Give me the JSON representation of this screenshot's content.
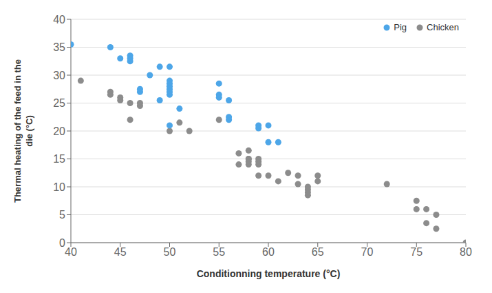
{
  "chart_data": {
    "type": "scatter",
    "xlabel": "Conditionning temperature (°C)",
    "ylabel": "Thermal heating of the feed in the\ndie (°C)",
    "xlim": [
      40,
      80
    ],
    "ylim": [
      0,
      40
    ],
    "xticks": [
      40,
      45,
      50,
      55,
      60,
      65,
      70,
      75,
      80
    ],
    "yticks": [
      0,
      5,
      10,
      15,
      20,
      25,
      30,
      35,
      40
    ],
    "grid": "y",
    "legend": "upper right",
    "series": [
      {
        "name": "Pig",
        "color": "#4da6e8",
        "x": [
          40,
          44,
          45,
          46,
          46,
          46,
          47,
          47,
          48,
          49,
          49,
          50,
          50,
          50,
          50,
          50,
          50,
          50,
          50,
          51,
          55,
          55,
          55,
          56,
          56,
          56,
          59,
          59,
          60,
          60,
          61
        ],
        "values": [
          35.5,
          35,
          33,
          32.5,
          33.5,
          33,
          27.5,
          27,
          30,
          31.5,
          25.5,
          31.5,
          29,
          28.5,
          28,
          27.5,
          27,
          26.5,
          21,
          24,
          28.5,
          26.5,
          26,
          25.5,
          22.5,
          22,
          21,
          20.5,
          21,
          18,
          18
        ]
      },
      {
        "name": "Chicken",
        "color": "#8c8c8c",
        "x": [
          41,
          44,
          44,
          45,
          45,
          46,
          46,
          47,
          47,
          50,
          51,
          52,
          55,
          57,
          57,
          58,
          58,
          58,
          58,
          58,
          59,
          59,
          59,
          59,
          60,
          61,
          62,
          63,
          63,
          64,
          64,
          64,
          64,
          65,
          65,
          72,
          75,
          75,
          76,
          76,
          77,
          77,
          80
        ],
        "values": [
          29,
          27,
          26.5,
          26,
          25.5,
          22,
          25,
          25,
          24.5,
          20,
          21.5,
          20,
          22,
          14,
          16,
          16.5,
          15,
          15,
          14.5,
          14,
          15,
          14.5,
          12,
          14,
          12,
          11,
          12.5,
          12,
          10.5,
          9.5,
          9,
          8.5,
          10,
          12,
          11,
          10.5,
          7.5,
          6,
          6,
          3.5,
          5,
          2.5,
          0
        ]
      }
    ]
  }
}
